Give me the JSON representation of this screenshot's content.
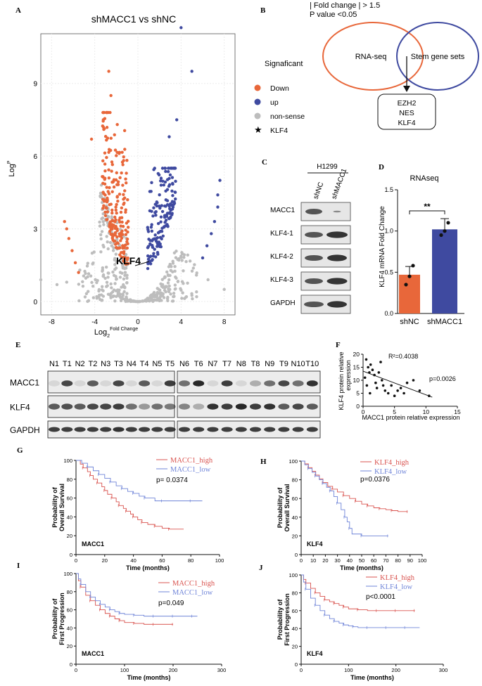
{
  "panels": {
    "A": "A",
    "B": "B",
    "C": "C",
    "D": "D",
    "E": "E",
    "F": "F",
    "G": "G",
    "H": "H",
    "I": "I",
    "J": "J"
  },
  "colors": {
    "down": "#e8673a",
    "up": "#3f4aa0",
    "ns": "#bdbdbd",
    "red": "#d9534f",
    "blue": "#6f84d8"
  },
  "volcano": {
    "title": "shMACC1 vs shNC",
    "ylabel": "Log",
    "ylabel_sup": "P",
    "xlabel": "Log",
    "xlabel_sub": "2",
    "xlabel_sup": "Fold Change",
    "xticks": [
      "-8",
      "-4",
      "0",
      "4",
      "8"
    ],
    "yticks": [
      "0",
      "3",
      "6",
      "9"
    ],
    "annotation": "KLF4",
    "legend_title": "Signaficant",
    "legend": [
      {
        "label": "Down",
        "kind": "down"
      },
      {
        "label": "up",
        "kind": "up"
      },
      {
        "label": "non-sense",
        "kind": "ns"
      },
      {
        "label": "KLF4",
        "kind": "star"
      }
    ]
  },
  "venn": {
    "line1": "| Fold change |  > 1.5",
    "line2": "P value <0.05",
    "left": "RNA-seq",
    "right": "Stem gene sets",
    "genes": [
      "EZH2",
      "NES",
      "KLF4"
    ]
  },
  "blotC": {
    "cell": "H1299",
    "lanes": [
      "shNC",
      "shMACC1"
    ],
    "rows": [
      "MACC1",
      "KLF4-1",
      "KLF4-2",
      "KLF4-3",
      "GAPDH"
    ]
  },
  "chart_data": [
    {
      "id": "D",
      "type": "bar",
      "title": "RNAseq",
      "ylabel": "KLF4 mRNA Fold Change",
      "categories": [
        "shNC",
        "shMACC1"
      ],
      "values": [
        0.47,
        1.02
      ],
      "errors": [
        0.1,
        0.13
      ],
      "points": [
        [
          0.35,
          0.45,
          0.58
        ],
        [
          0.95,
          1.0,
          1.1
        ]
      ],
      "ylim": [
        0,
        1.5
      ],
      "yticks": [
        "0.0",
        "0.5",
        "1.0",
        "1.5"
      ],
      "significance": "**"
    },
    {
      "id": "F",
      "type": "scatter",
      "xlabel": "MACC1 protein relative expression",
      "ylabel": "KLF4 protein relative expression",
      "xlim": [
        0,
        15
      ],
      "ylim": [
        0,
        20
      ],
      "xticks": [
        "0",
        "5",
        "10",
        "15"
      ],
      "yticks": [
        "0",
        "5",
        "10",
        "15",
        "20"
      ],
      "r2": "R²=0.4038",
      "p": "p=0.0026",
      "x": [
        0.5,
        0.8,
        1.0,
        1.2,
        1.5,
        0.3,
        1.8,
        2.0,
        2.2,
        2.5,
        3.0,
        3.2,
        3.5,
        4.0,
        4.5,
        5.0,
        5.5,
        6.0,
        6.5,
        7.0,
        8.0,
        9.0,
        10.5,
        1.1,
        0.6,
        2.8
      ],
      "y": [
        18,
        15,
        13,
        16,
        14,
        11,
        12,
        9,
        7,
        13,
        10,
        8,
        6,
        5,
        8,
        4,
        6,
        7,
        5,
        9,
        10,
        6,
        4,
        5,
        8,
        17
      ],
      "fit": [
        [
          0,
          13.5
        ],
        [
          11,
          3.5
        ]
      ]
    },
    {
      "id": "G",
      "type": "line",
      "label": "MACC1",
      "xlabel": "Time (months)",
      "ylabel": "Probability of Overall Survival",
      "xlim": [
        0,
        100
      ],
      "ylim": [
        0,
        100
      ],
      "xticks": [
        "0",
        "20",
        "40",
        "60",
        "80",
        "100"
      ],
      "yticks": [
        "0",
        "20",
        "40",
        "60",
        "80",
        "100"
      ],
      "p": "p= 0.0374",
      "series": [
        {
          "name": "MACC1_high",
          "color": "red",
          "x": [
            0,
            3,
            5,
            8,
            10,
            12,
            15,
            18,
            20,
            22,
            25,
            28,
            30,
            33,
            35,
            38,
            40,
            43,
            46,
            50,
            55,
            60,
            65,
            75
          ],
          "y": [
            100,
            96,
            92,
            88,
            84,
            80,
            76,
            72,
            68,
            64,
            60,
            56,
            52,
            49,
            46,
            43,
            40,
            37,
            34,
            32,
            30,
            28,
            27,
            27
          ]
        },
        {
          "name": "MACC1_low",
          "color": "blue",
          "x": [
            0,
            4,
            8,
            12,
            16,
            20,
            24,
            28,
            32,
            36,
            40,
            44,
            48,
            55,
            60,
            70,
            80,
            88
          ],
          "y": [
            100,
            97,
            93,
            89,
            85,
            81,
            77,
            73,
            70,
            67,
            65,
            62,
            60,
            57,
            57,
            57,
            57,
            57
          ]
        }
      ]
    },
    {
      "id": "H",
      "type": "line",
      "label": "KLF4",
      "xlabel": "Time (months)",
      "ylabel": "Probability of Overall Survival",
      "xlim": [
        0,
        100
      ],
      "ylim": [
        0,
        100
      ],
      "xticks": [
        "0",
        "10",
        "20",
        "30",
        "40",
        "50",
        "60",
        "70",
        "80",
        "90",
        "100"
      ],
      "yticks": [
        "0",
        "20",
        "40",
        "60",
        "80",
        "100"
      ],
      "p": "p=0.0376",
      "series": [
        {
          "name": "KLF4_high",
          "color": "red",
          "x": [
            0,
            3,
            6,
            9,
            12,
            15,
            18,
            22,
            26,
            30,
            35,
            40,
            45,
            50,
            55,
            60,
            65,
            70,
            75,
            80,
            88
          ],
          "y": [
            100,
            97,
            93,
            89,
            85,
            81,
            77,
            73,
            70,
            67,
            63,
            60,
            57,
            54,
            52,
            50,
            49,
            48,
            47,
            46,
            46
          ]
        },
        {
          "name": "KLF4_low",
          "color": "blue",
          "x": [
            0,
            3,
            6,
            9,
            12,
            15,
            18,
            21,
            24,
            27,
            30,
            33,
            36,
            38,
            40,
            42,
            50,
            60,
            72
          ],
          "y": [
            100,
            96,
            92,
            88,
            84,
            80,
            76,
            72,
            68,
            62,
            55,
            48,
            40,
            35,
            28,
            22,
            20,
            20,
            20
          ]
        }
      ]
    },
    {
      "id": "I",
      "type": "line",
      "label": "MACC1",
      "xlabel": "Time (months)",
      "ylabel": "Probability of First Progression",
      "xlim": [
        0,
        300
      ],
      "ylim": [
        0,
        100
      ],
      "xticks": [
        "0",
        "100",
        "200",
        "300"
      ],
      "yticks": [
        "0",
        "20",
        "40",
        "60",
        "80",
        "100"
      ],
      "p": "p=0.049",
      "series": [
        {
          "name": "MACC1_high",
          "color": "red",
          "x": [
            0,
            5,
            10,
            20,
            30,
            40,
            50,
            60,
            70,
            80,
            90,
            100,
            120,
            140,
            160,
            180,
            200
          ],
          "y": [
            100,
            92,
            85,
            76,
            70,
            65,
            60,
            56,
            53,
            50,
            48,
            46,
            45,
            44,
            44,
            44,
            44
          ]
        },
        {
          "name": "MACC1_low",
          "color": "blue",
          "x": [
            0,
            5,
            10,
            20,
            30,
            40,
            50,
            60,
            70,
            80,
            90,
            100,
            120,
            140,
            160,
            180,
            200,
            220,
            240,
            250
          ],
          "y": [
            100,
            94,
            88,
            80,
            74,
            70,
            66,
            63,
            60,
            58,
            56,
            55,
            54,
            53,
            53,
            53,
            53,
            53,
            53,
            53
          ]
        }
      ]
    },
    {
      "id": "J",
      "type": "line",
      "label": "KLF4",
      "xlabel": "Time (months)",
      "ylabel": "Probability of First Progression",
      "xlim": [
        0,
        300
      ],
      "ylim": [
        0,
        100
      ],
      "xticks": [
        "0",
        "100",
        "200",
        "300"
      ],
      "yticks": [
        "0",
        "20",
        "40",
        "60",
        "80",
        "100"
      ],
      "p": "p<0.0001",
      "series": [
        {
          "name": "KLF4_high",
          "color": "red",
          "x": [
            0,
            5,
            10,
            20,
            30,
            40,
            50,
            60,
            70,
            80,
            90,
            100,
            120,
            140,
            160,
            180,
            200,
            220,
            240
          ],
          "y": [
            100,
            95,
            91,
            85,
            80,
            76,
            72,
            70,
            68,
            66,
            64,
            62,
            61,
            60,
            60,
            60,
            60,
            60,
            60
          ]
        },
        {
          "name": "KLF4_low",
          "color": "blue",
          "x": [
            0,
            5,
            10,
            20,
            30,
            40,
            50,
            60,
            70,
            80,
            90,
            100,
            110,
            120,
            140,
            160,
            180,
            200,
            220,
            250
          ],
          "y": [
            100,
            92,
            84,
            74,
            66,
            60,
            55,
            51,
            48,
            46,
            44,
            43,
            42,
            41,
            41,
            41,
            41,
            41,
            41,
            41
          ]
        }
      ]
    }
  ],
  "blotE": {
    "left_lanes": [
      "N1",
      "T1",
      "N2",
      "T2",
      "N3",
      "T3",
      "N4",
      "T4",
      "N5",
      "T5"
    ],
    "right_lanes": [
      "N6",
      "T6",
      "N7",
      "T7",
      "N8",
      "T8",
      "N9",
      "T9",
      "N10",
      "T10"
    ],
    "rows": [
      "MACC1",
      "KLF4",
      "GAPDH"
    ]
  }
}
